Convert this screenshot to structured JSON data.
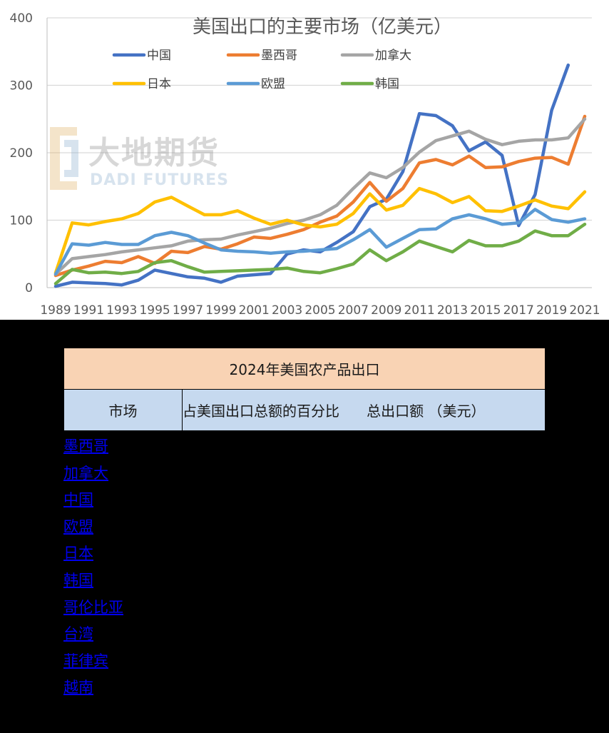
{
  "chart_data": {
    "type": "line",
    "title": "美国出口的主要市场（亿美元）",
    "xlabel": "",
    "ylabel": "",
    "ylim": [
      0,
      400
    ],
    "yticks": [
      0,
      100,
      200,
      300,
      400
    ],
    "x": [
      1989,
      1990,
      1991,
      1992,
      1993,
      1994,
      1995,
      1996,
      1997,
      1998,
      1999,
      2000,
      2001,
      2002,
      2003,
      2004,
      2005,
      2006,
      2007,
      2008,
      2009,
      2010,
      2011,
      2012,
      2013,
      2014,
      2015,
      2016,
      2017,
      2018,
      2019,
      2020,
      2021
    ],
    "xtick_labels": [
      "1989",
      "1991",
      "1993",
      "1995",
      "1997",
      "1999",
      "2001",
      "2003",
      "2005",
      "2007",
      "2009",
      "2011",
      "2013",
      "2015",
      "2017",
      "2019",
      "2021"
    ],
    "grid": "horizontal",
    "legend_position": "top",
    "series": [
      {
        "name": "中国",
        "color": "#4472c4",
        "values": [
          2,
          8,
          7,
          6,
          4,
          11,
          26,
          21,
          16,
          14,
          8,
          17,
          19,
          21,
          50,
          56,
          53,
          67,
          83,
          120,
          131,
          172,
          258,
          255,
          240,
          203,
          216,
          196,
          92,
          138,
          263,
          330,
          null
        ]
      },
      {
        "name": "墨西哥",
        "color": "#ed7d31",
        "values": [
          18,
          26,
          32,
          39,
          37,
          46,
          36,
          54,
          52,
          61,
          57,
          65,
          75,
          73,
          79,
          86,
          97,
          106,
          127,
          156,
          128,
          147,
          185,
          190,
          182,
          195,
          178,
          179,
          187,
          192,
          193,
          183,
          254
        ]
      },
      {
        "name": "加拿大",
        "color": "#a5a5a5",
        "values": [
          20,
          43,
          46,
          49,
          53,
          56,
          59,
          62,
          69,
          71,
          72,
          78,
          83,
          88,
          95,
          100,
          108,
          122,
          147,
          170,
          163,
          178,
          201,
          218,
          225,
          232,
          220,
          212,
          217,
          219,
          219,
          222,
          250
        ]
      },
      {
        "name": "日本",
        "color": "#ffc000",
        "values": [
          22,
          96,
          93,
          98,
          102,
          110,
          127,
          134,
          121,
          108,
          108,
          114,
          103,
          94,
          100,
          93,
          90,
          94,
          110,
          139,
          115,
          122,
          147,
          139,
          126,
          135,
          114,
          113,
          121,
          130,
          121,
          117,
          142
        ]
      },
      {
        "name": "欧盟",
        "color": "#5b9bd5",
        "values": [
          20,
          65,
          63,
          67,
          64,
          64,
          77,
          82,
          77,
          66,
          56,
          54,
          53,
          51,
          53,
          54,
          56,
          58,
          71,
          86,
          60,
          73,
          86,
          87,
          102,
          108,
          102,
          94,
          96,
          116,
          101,
          97,
          102
        ]
      },
      {
        "name": "韩国",
        "color": "#70ad47",
        "values": [
          6,
          27,
          22,
          23,
          21,
          24,
          37,
          40,
          31,
          23,
          24,
          25,
          26,
          27,
          29,
          24,
          22,
          28,
          35,
          56,
          40,
          53,
          69,
          61,
          53,
          70,
          62,
          62,
          69,
          84,
          77,
          77,
          94
        ]
      }
    ]
  },
  "watermark": {
    "cn": "大地期货",
    "en": "DADI FUTURES"
  },
  "table": {
    "title": "2024年美国农产品出口",
    "col1": "市场",
    "col2": "占美国出口总额的百分比      总出口额 （美元）"
  },
  "markets": [
    "墨西哥",
    "加拿大",
    "中国",
    "欧盟",
    "日本",
    "韩国",
    "哥伦比亚",
    "台湾",
    "菲律宾",
    "越南"
  ]
}
